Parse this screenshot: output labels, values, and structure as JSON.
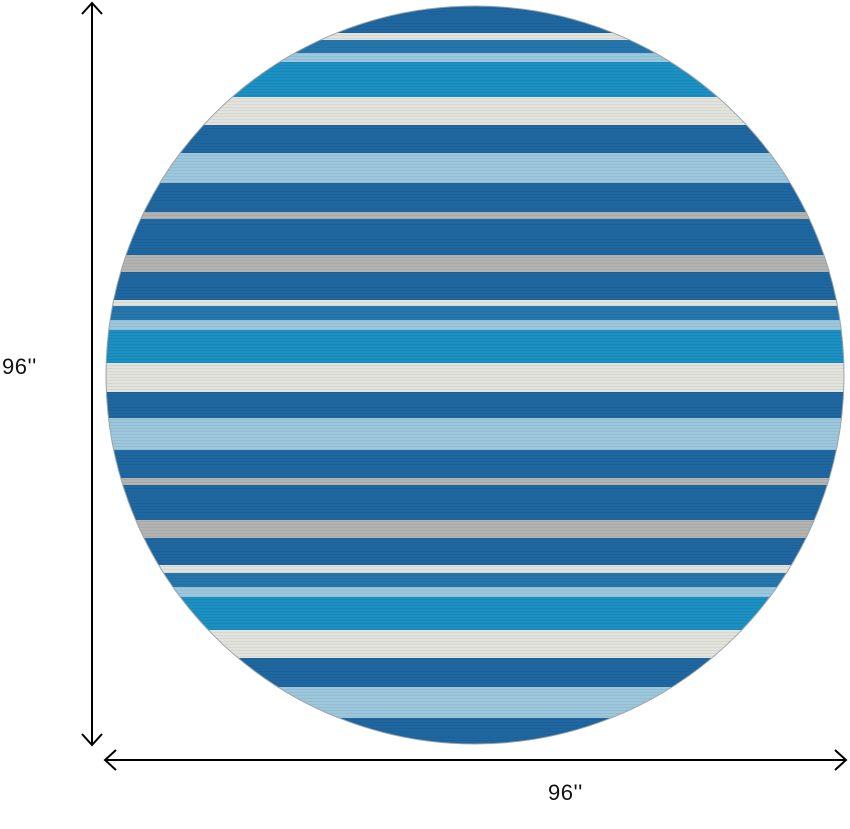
{
  "dimensions": {
    "height_label": "96''",
    "width_label": "96''"
  },
  "colors": {
    "dark_blue": "#1f67a0",
    "blue": "#2476ad",
    "teal": "#1c8fc3",
    "light_blue": "#9cc7dc",
    "off_white": "#e3e3de",
    "gray": "#b3b3b1",
    "arrow": "#000000"
  }
}
